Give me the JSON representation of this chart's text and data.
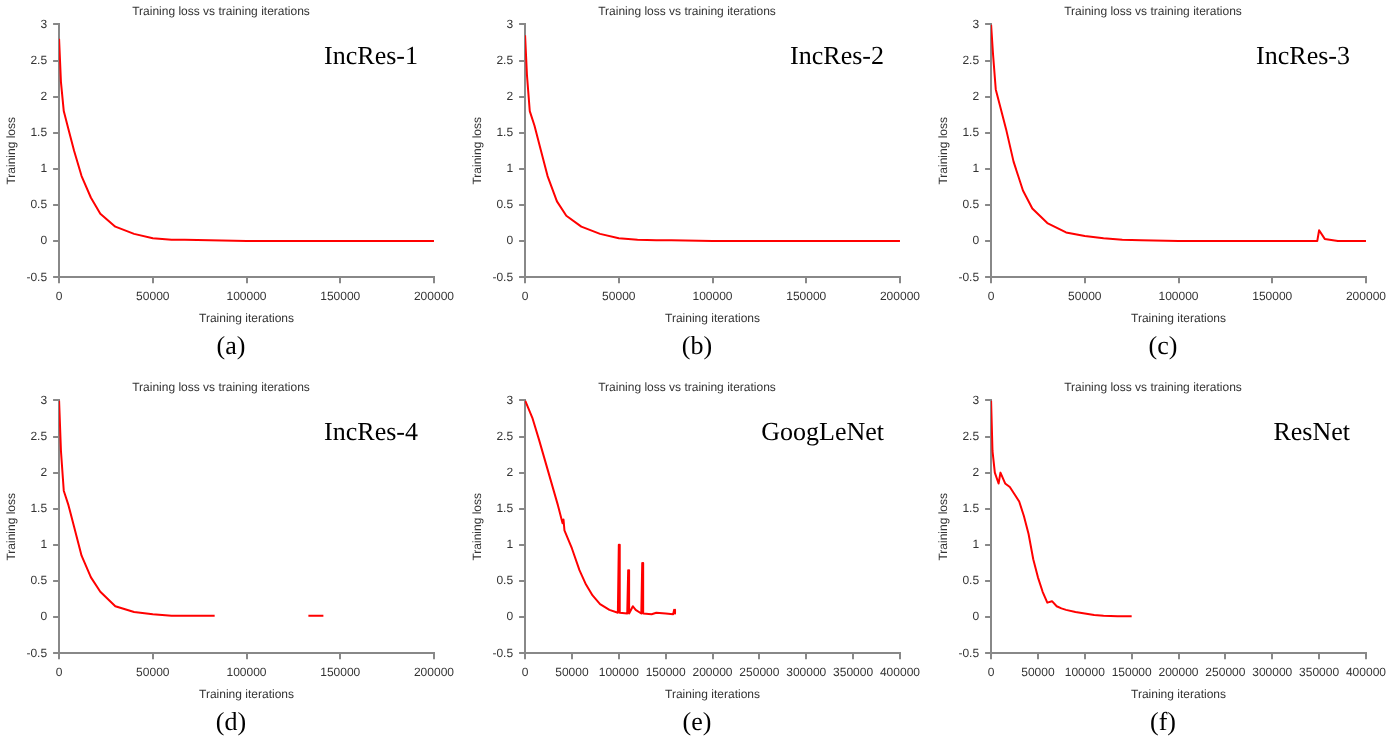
{
  "chart_data": [
    {
      "type": "line",
      "title": "Training loss vs training iterations",
      "xlabel": "Training iterations",
      "ylabel": "Training loss",
      "annotations": [
        "IncRes-1",
        "(a)"
      ],
      "xlim": [
        0,
        200000
      ],
      "xticks": [
        0,
        50000,
        100000,
        150000,
        200000
      ],
      "ylim": [
        -0.5,
        3
      ],
      "yticks": [
        -0.5,
        0,
        0.5,
        1,
        1.5,
        2,
        2.5,
        3
      ],
      "series": [
        {
          "color": "#ff0000",
          "x": [
            0,
            1000,
            2500,
            5000,
            8000,
            12000,
            17000,
            22000,
            30000,
            40000,
            50000,
            60000,
            67000,
            100000,
            150000,
            200000
          ],
          "values": [
            2.8,
            2.2,
            1.8,
            1.55,
            1.25,
            0.9,
            0.6,
            0.38,
            0.2,
            0.1,
            0.04,
            0.02,
            0.02,
            0,
            0,
            0
          ]
        }
      ]
    },
    {
      "type": "line",
      "title": "Training loss vs training iterations",
      "xlabel": "Training iterations",
      "ylabel": "Training loss",
      "annotations": [
        "IncRes-2",
        "(b)"
      ],
      "xlim": [
        0,
        200000
      ],
      "xticks": [
        0,
        50000,
        100000,
        150000,
        200000
      ],
      "ylim": [
        -0.5,
        3
      ],
      "yticks": [
        -0.5,
        0,
        0.5,
        1,
        1.5,
        2,
        2.5,
        3
      ],
      "series": [
        {
          "color": "#ff0000",
          "x": [
            0,
            1000,
            2500,
            5000,
            8000,
            12000,
            17000,
            22000,
            30000,
            40000,
            50000,
            60000,
            70000,
            78000,
            100000,
            150000,
            200000
          ],
          "values": [
            2.85,
            2.3,
            1.8,
            1.6,
            1.3,
            0.9,
            0.55,
            0.35,
            0.2,
            0.1,
            0.04,
            0.02,
            0.01,
            0.01,
            0,
            0,
            0
          ]
        }
      ]
    },
    {
      "type": "line",
      "title": "Training loss vs training iterations",
      "xlabel": "Training iterations",
      "ylabel": "Training loss",
      "annotations": [
        "IncRes-3",
        "(c)"
      ],
      "xlim": [
        0,
        200000
      ],
      "xticks": [
        0,
        50000,
        100000,
        150000,
        200000
      ],
      "ylim": [
        -0.5,
        3
      ],
      "yticks": [
        -0.5,
        0,
        0.5,
        1,
        1.5,
        2,
        2.5,
        3
      ],
      "series": [
        {
          "color": "#ff0000",
          "x": [
            0,
            1000,
            2500,
            5000,
            8000,
            12000,
            17000,
            22000,
            30000,
            40000,
            50000,
            60000,
            70000,
            80000,
            100000,
            150000,
            174000,
            175000,
            178000,
            185000,
            200000
          ],
          "values": [
            3,
            2.6,
            2.1,
            1.85,
            1.55,
            1.1,
            0.7,
            0.45,
            0.25,
            0.12,
            0.07,
            0.04,
            0.02,
            0.01,
            0,
            0,
            0,
            0.15,
            0.03,
            0,
            0
          ]
        }
      ]
    },
    {
      "type": "line",
      "title": "Training loss vs training iterations",
      "xlabel": "Training iterations",
      "ylabel": "Training loss",
      "annotations": [
        "IncRes-4",
        "(d)"
      ],
      "xlim": [
        0,
        200000
      ],
      "xticks": [
        0,
        50000,
        100000,
        150000,
        200000
      ],
      "ylim": [
        -0.5,
        3
      ],
      "yticks": [
        -0.5,
        0,
        0.5,
        1,
        1.5,
        2,
        2.5,
        3
      ],
      "series": [
        {
          "color": "#ff0000",
          "x": [
            0,
            1000,
            2500,
            5000,
            8000,
            12000,
            17000,
            22000,
            30000,
            40000,
            50000,
            60000,
            70000,
            83000,
            110000,
            133000,
            141000
          ],
          "values": [
            3,
            2.3,
            1.75,
            1.55,
            1.25,
            0.85,
            0.55,
            0.35,
            0.15,
            0.07,
            0.04,
            0.02,
            0.02,
            0.02,
            null,
            0.02,
            0.02
          ]
        }
      ]
    },
    {
      "type": "line",
      "title": "Training loss vs training iterations",
      "xlabel": "Training iterations",
      "ylabel": "Training loss",
      "annotations": [
        "GoogLeNet",
        "(e)"
      ],
      "xlim": [
        0,
        400000
      ],
      "xticks": [
        0,
        50000,
        100000,
        150000,
        200000,
        250000,
        300000,
        350000,
        400000
      ],
      "ylim": [
        -0.5,
        3
      ],
      "yticks": [
        -0.5,
        0,
        0.5,
        1,
        1.5,
        2,
        2.5,
        3
      ],
      "series": [
        {
          "color": "#ff0000",
          "x": [
            0,
            8000,
            15000,
            25000,
            35000,
            40000,
            41000,
            42000,
            50000,
            58000,
            65000,
            72000,
            80000,
            90000,
            99000,
            100000,
            101000,
            109000,
            110000,
            111000,
            115000,
            118000,
            124000,
            125000,
            126000,
            135000,
            140000,
            150000,
            158000,
            159000,
            160000
          ],
          "values": [
            3,
            2.75,
            2.45,
            2.0,
            1.55,
            1.3,
            1.35,
            1.2,
            0.95,
            0.65,
            0.45,
            0.3,
            0.18,
            0.1,
            0.06,
            1.0,
            0.06,
            0.05,
            0.65,
            0.05,
            0.15,
            0.1,
            0.05,
            0.75,
            0.05,
            0.04,
            0.06,
            0.05,
            0.04,
            0.1,
            0.05
          ]
        }
      ]
    },
    {
      "type": "line",
      "title": "Training loss vs training iterations",
      "xlabel": "Training iterations",
      "ylabel": "Training loss",
      "annotations": [
        "ResNet",
        "(f)"
      ],
      "xlim": [
        0,
        400000
      ],
      "xticks": [
        0,
        50000,
        100000,
        150000,
        200000,
        250000,
        300000,
        350000,
        400000
      ],
      "ylim": [
        -0.5,
        3
      ],
      "yticks": [
        -0.5,
        0,
        0.5,
        1,
        1.5,
        2,
        2.5,
        3
      ],
      "series": [
        {
          "color": "#ff0000",
          "x": [
            0,
            1500,
            4000,
            8000,
            10000,
            15000,
            20000,
            25000,
            30000,
            35000,
            40000,
            45000,
            50000,
            55000,
            60000,
            65000,
            70000,
            75000,
            80000,
            90000,
            100000,
            110000,
            120000,
            135000,
            150000
          ],
          "values": [
            3,
            2.3,
            2.0,
            1.85,
            2.0,
            1.85,
            1.8,
            1.7,
            1.6,
            1.4,
            1.15,
            0.8,
            0.55,
            0.35,
            0.2,
            0.22,
            0.15,
            0.12,
            0.1,
            0.07,
            0.05,
            0.03,
            0.02,
            0.01,
            0.01
          ]
        }
      ]
    }
  ]
}
